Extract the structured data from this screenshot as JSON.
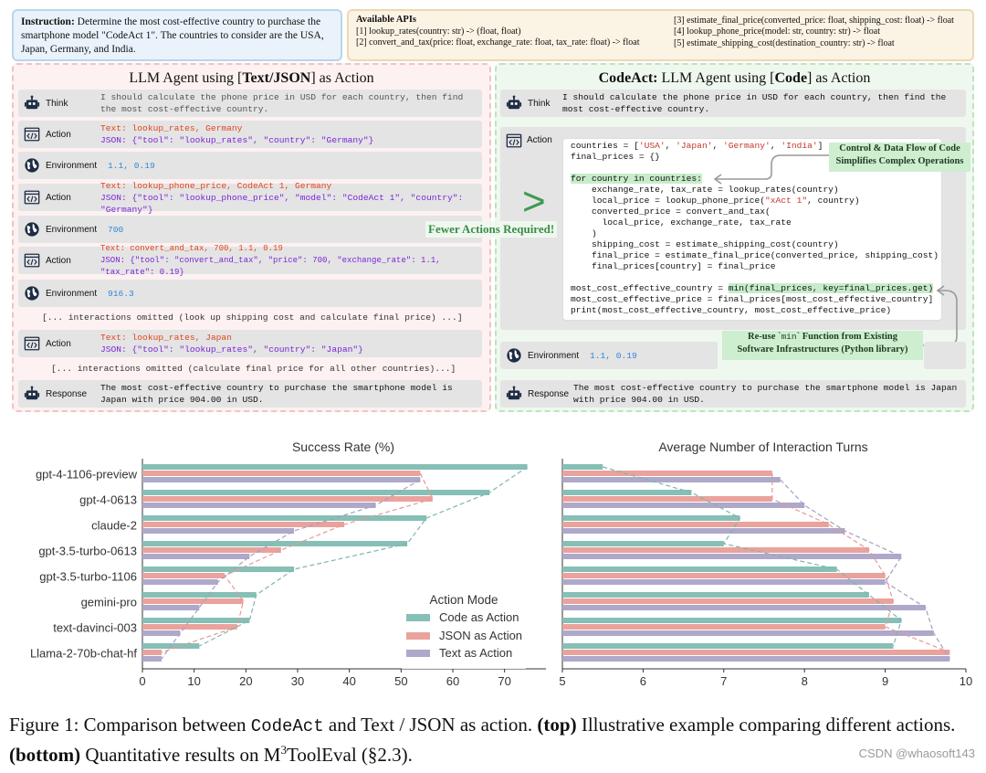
{
  "instruction": {
    "label": "Instruction:",
    "text": "Determine the most cost-effective country to purchase the smartphone model \"CodeAct 1\". The countries to consider are the USA, Japan, Germany, and India."
  },
  "apis": {
    "title": "Available APIs",
    "items": [
      "[1] lookup_rates(country: str) -> (float, float)",
      "[2] convert_and_tax(price: float, exchange_rate: float, tax_rate: float) -> float",
      "[3] estimate_final_price(converted_price: float, shipping_cost: float) -> float",
      "[4] lookup_phone_price(model: str, country: str) -> float",
      "[5] estimate_shipping_cost(destination_country: str) -> float"
    ]
  },
  "left_panel": {
    "title_pre": "LLM Agent using [",
    "title_bold": "Text/JSON",
    "title_post": "] as Action",
    "think_label": "Think",
    "think_text": "I should calculate the phone price in USD for each country, then find the most cost-effective country.",
    "action_label": "Action",
    "env_label": "Environment",
    "response_label": "Response",
    "actions": [
      {
        "text": "Text: lookup_rates, Germany",
        "json": "JSON: {\"tool\": \"lookup_rates\", \"country\": \"Germany\"}"
      },
      {
        "text": "Text: lookup_phone_price, CodeAct 1, Germany",
        "json": "JSON: {\"tool\": \"lookup_phone_price\", \"model\": \"CodeAct 1\", \"country\": \"Germany\"}"
      },
      {
        "text": "Text: convert_and_tax, 700, 1.1, 0.19",
        "json": "JSON: {\"tool\": \"convert_and_tax\", \"price\": 700, \"exchange_rate\": 1.1, \"tax_rate\": 0.19}"
      },
      {
        "text": "Text: lookup_rates, Japan",
        "json": "JSON: {\"tool\": \"lookup_rates\", \"country\": \"Japan\"}"
      }
    ],
    "envs": [
      "1.1, 0.19",
      "700",
      "916.3"
    ],
    "omit_1": "[... interactions omitted (look up shipping cost and calculate final price) ...]",
    "omit_2": "[... interactions omitted (calculate final price for all other countries)...]",
    "response_text": "The most cost-effective country to purchase the smartphone model is Japan with price 904.00 in USD."
  },
  "right_panel": {
    "title_bold": "CodeAct:",
    "title_mid": " LLM Agent using [",
    "title_bold2": "Code",
    "title_post": "] as Action",
    "think_label": "Think",
    "think_text": "I should calculate the phone price in USD for each country, then find the most cost-effective country.",
    "action_label": "Action",
    "env_label": "Environment",
    "env_value": "1.1, 0.19",
    "response_label": "Response",
    "response_text": "The most cost-effective country to purchase the smartphone model is Japan with price 904.00 in USD.",
    "code": {
      "l1_pre": "countries = [",
      "l1_s1": "'USA'",
      "l1_s2": "'Japan'",
      "l1_s3": "'Germany'",
      "l1_s4": "'India'",
      "l1_post": "]",
      "l2": "final_prices = {}",
      "l3": "for country in countries:",
      "l4": "    exchange_rate, tax_rate = lookup_rates(country)",
      "l5_pre": "    local_price = lookup_phone_price(",
      "l5_str": "\"xAct 1\"",
      "l5_post": ", country)",
      "l6": "    converted_price = convert_and_tax(",
      "l7": "      local_price, exchange_rate, tax_rate",
      "l8": "    )",
      "l9": "    shipping_cost = estimate_shipping_cost(country)",
      "l10": "    final_price = estimate_final_price(converted_price, shipping_cost)",
      "l11": "    final_prices[country] = final_price",
      "l12_pre": "most_cost_effective_country = ",
      "l12_hl": "min(final_prices, key=final_prices.get)",
      "l13": "most_cost_effective_price = final_prices[most_cost_effective_country]",
      "l14": "print(most_cost_effective_country, most_cost_effective_price)"
    },
    "callout_1_l1": "Control & Data Flow of Code",
    "callout_1_l2": "Simplifies Complex Operations",
    "callout_2_pre": "Re-use `",
    "callout_2_code": "min",
    "callout_2_post": "` Function from Existing",
    "callout_2_l2": "Software Infrastructures (Python library)"
  },
  "comparison": {
    "symbol": ">",
    "label": "Fewer Actions Required!"
  },
  "chart_data": [
    {
      "type": "bar",
      "orientation": "horizontal",
      "title": "Success Rate (%)",
      "categories": [
        "gpt-4-1106-preview",
        "gpt-4-0613",
        "claude-2",
        "gpt-3.5-turbo-0613",
        "gpt-3.5-turbo-1106",
        "gemini-pro",
        "text-davinci-003",
        "Llama-2-70b-chat-hf"
      ],
      "series": [
        {
          "name": "Code as Action",
          "color": "#86bfb5",
          "values": [
            74.4,
            67.1,
            54.9,
            51.2,
            29.3,
            22.0,
            20.7,
            11.0
          ]
        },
        {
          "name": "JSON as Action",
          "color": "#eaa29c",
          "values": [
            53.7,
            56.1,
            39.0,
            26.8,
            15.9,
            19.5,
            18.3,
            3.7
          ]
        },
        {
          "name": "Text as Action",
          "color": "#aea8c9",
          "values": [
            53.7,
            45.1,
            29.3,
            20.7,
            14.6,
            11.0,
            7.3,
            3.7
          ]
        }
      ],
      "xlim": [
        0,
        78
      ],
      "xticks": [
        0,
        10,
        20,
        30,
        40,
        50,
        60,
        70
      ]
    },
    {
      "type": "bar",
      "orientation": "horizontal",
      "title": "Average Number of Interaction Turns",
      "categories": [
        "gpt-4-1106-preview",
        "gpt-4-0613",
        "claude-2",
        "gpt-3.5-turbo-0613",
        "gpt-3.5-turbo-1106",
        "gemini-pro",
        "text-davinci-003",
        "Llama-2-70b-chat-hf"
      ],
      "series": [
        {
          "name": "Code as Action",
          "color": "#86bfb5",
          "values": [
            5.5,
            6.6,
            7.2,
            7.0,
            8.4,
            8.8,
            9.2,
            9.1
          ]
        },
        {
          "name": "JSON as Action",
          "color": "#eaa29c",
          "values": [
            7.6,
            7.6,
            8.3,
            8.8,
            9.0,
            9.1,
            9.0,
            9.8
          ]
        },
        {
          "name": "Text as Action",
          "color": "#aea8c9",
          "values": [
            7.7,
            8.0,
            8.5,
            9.2,
            9.0,
            9.5,
            9.6,
            9.8
          ]
        }
      ],
      "xlim": [
        5,
        10
      ],
      "xticks": [
        5,
        6,
        7,
        8,
        9,
        10
      ]
    }
  ],
  "legend": {
    "title": "Action Mode",
    "items": [
      "Code as Action",
      "JSON as Action",
      "Text as Action"
    ]
  },
  "caption": {
    "pre": "Figure 1:  Comparison between ",
    "mono1": "CodeAct",
    "mid1": " and Text / JSON as action.  ",
    "bold1": "(top)",
    "mid2": " Illustrative example comparing different actions. ",
    "bold2": "(bottom)",
    "mid3": " Quantitative results on M",
    "sup": "3",
    "post": "ToolEval (§2.3)."
  },
  "watermark": "CSDN @whaosoft143"
}
